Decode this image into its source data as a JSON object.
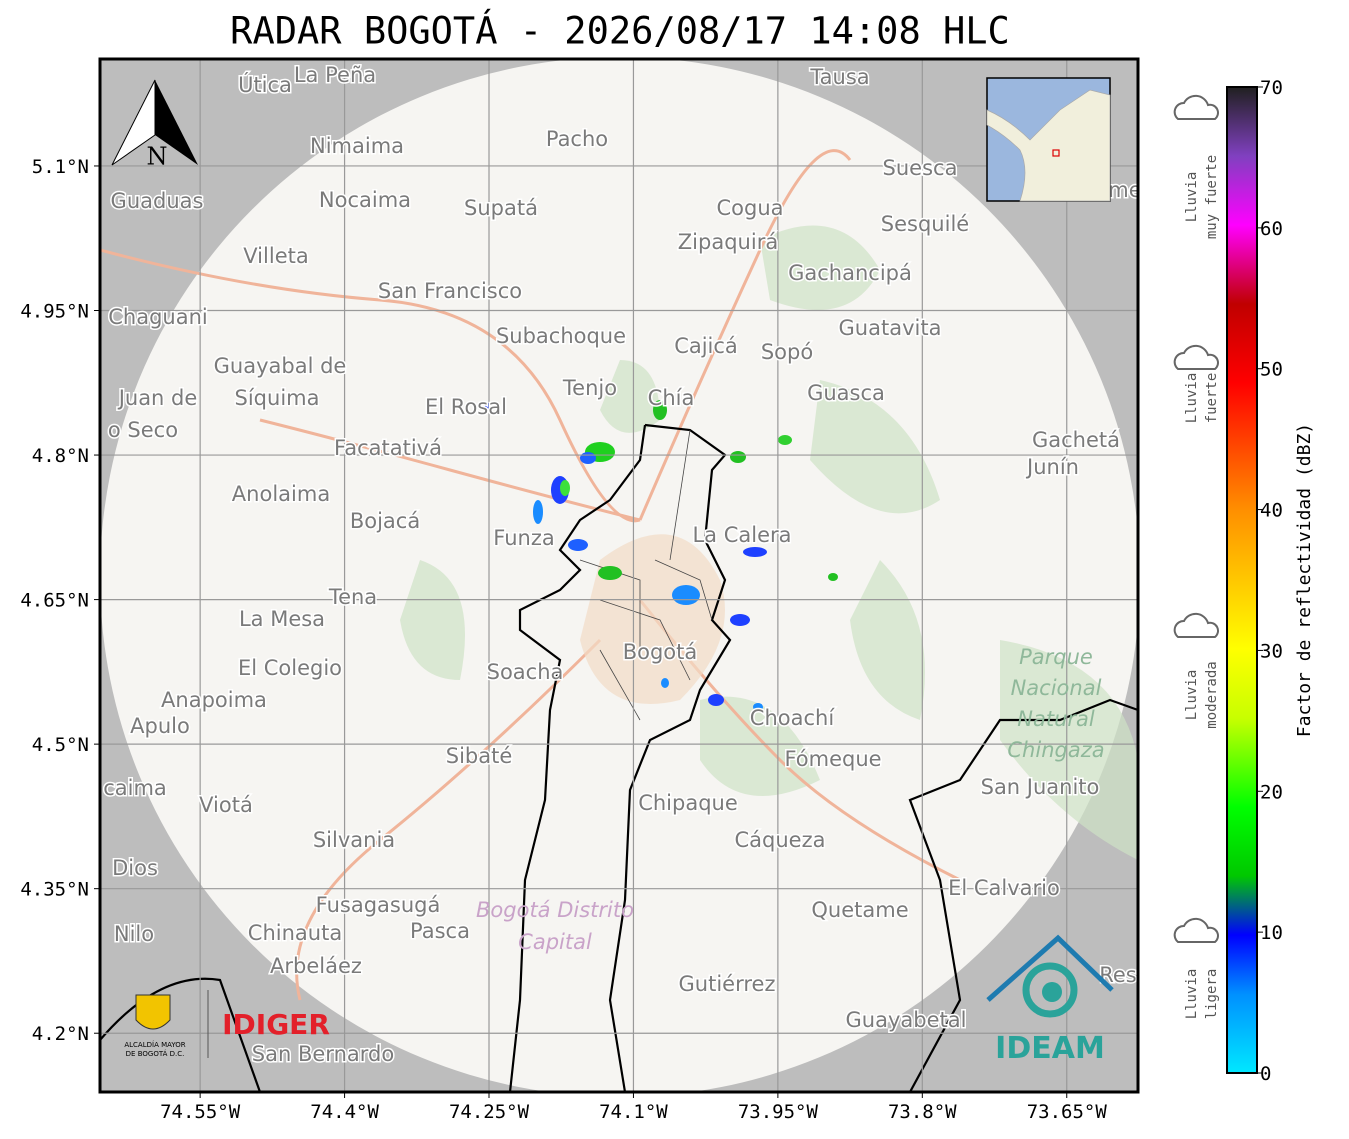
{
  "title": "RADAR BOGOTÁ - 2026/08/17 14:08 HLC",
  "map": {
    "xlim": [
      -74.654,
      -73.576
    ],
    "ylim": [
      4.139,
      5.211
    ],
    "xticks": [
      {
        "value": -74.55,
        "label": "74.55°W"
      },
      {
        "value": -74.4,
        "label": "74.4°W"
      },
      {
        "value": -74.25,
        "label": "74.25°W"
      },
      {
        "value": -74.1,
        "label": "74.1°W"
      },
      {
        "value": -73.95,
        "label": "73.95°W"
      },
      {
        "value": -73.8,
        "label": "73.8°W"
      },
      {
        "value": -73.65,
        "label": "73.65°W"
      }
    ],
    "yticks": [
      {
        "value": 5.1,
        "label": "5.1°N"
      },
      {
        "value": 4.95,
        "label": "4.95°N"
      },
      {
        "value": 4.8,
        "label": "4.8°N"
      },
      {
        "value": 4.65,
        "label": "4.65°N"
      },
      {
        "value": 4.5,
        "label": "4.5°N"
      },
      {
        "value": 4.35,
        "label": "4.35°N"
      },
      {
        "value": 4.2,
        "label": "4.2°N"
      }
    ],
    "grid": true,
    "north": "N",
    "places": [
      "Útica",
      "La Peña",
      "Tausa",
      "Pacho",
      "Nimaima",
      "Guaduas",
      "Nocaima",
      "Supatá",
      "Cogua",
      "Suesca",
      "Sesquilé",
      "Zipaquirá",
      "Villeta",
      "Gachancipá",
      "San Francisco",
      "Chaguani",
      "Guatavita",
      "Subachoque",
      "Cajicá",
      "Sopó",
      "Guayabal de",
      "Síquima",
      "Tenjo",
      "Chía",
      "Guasca",
      "Juan de",
      "o Seco",
      "El Rosal",
      "Facatativá",
      "Gachetá",
      "Junín",
      "Anolaima",
      "Bojacá",
      "Funza",
      "La Calera",
      "Tena",
      "La Mesa",
      "Soacha",
      "Bogotá",
      "El Colegio",
      "Anapoima",
      "Apulo",
      "Choachí",
      "Sibaté",
      "Fómeque",
      "San Juanito",
      "caima",
      "Viotá",
      "Chipaque",
      "Silvania",
      "Cáqueza",
      "Dios",
      "El Calvario",
      "Fusagasugá",
      "Quetame",
      "Nilo",
      "Chinauta",
      "Pasca",
      "Arbeláez",
      "Gutiérrez",
      "Guayabetal",
      "San Bernardo",
      "Res",
      "me"
    ],
    "park": [
      "Parque",
      "Nacional",
      "Natural",
      "Chingaza"
    ],
    "district": [
      "Bogotá Distrito",
      "Capital"
    ]
  },
  "colorbar": {
    "label": "Factor de reflectividad (dBZ)",
    "lim": [
      0,
      70
    ],
    "ticks": [
      0,
      10,
      20,
      30,
      40,
      50,
      60,
      70
    ]
  },
  "legend": [
    [
      "Lluvia",
      "muy fuerte"
    ],
    [
      "Lluvia",
      "fuerte"
    ],
    [
      "Lluvia",
      "moderada"
    ],
    [
      "Lluvia",
      "ligera"
    ]
  ],
  "logos": {
    "alcaldia": [
      "ALCALDÍA MAYOR",
      "DE BOGOTÁ D.C."
    ],
    "idiger": "IDIGER",
    "ideam": "IDEAM"
  }
}
